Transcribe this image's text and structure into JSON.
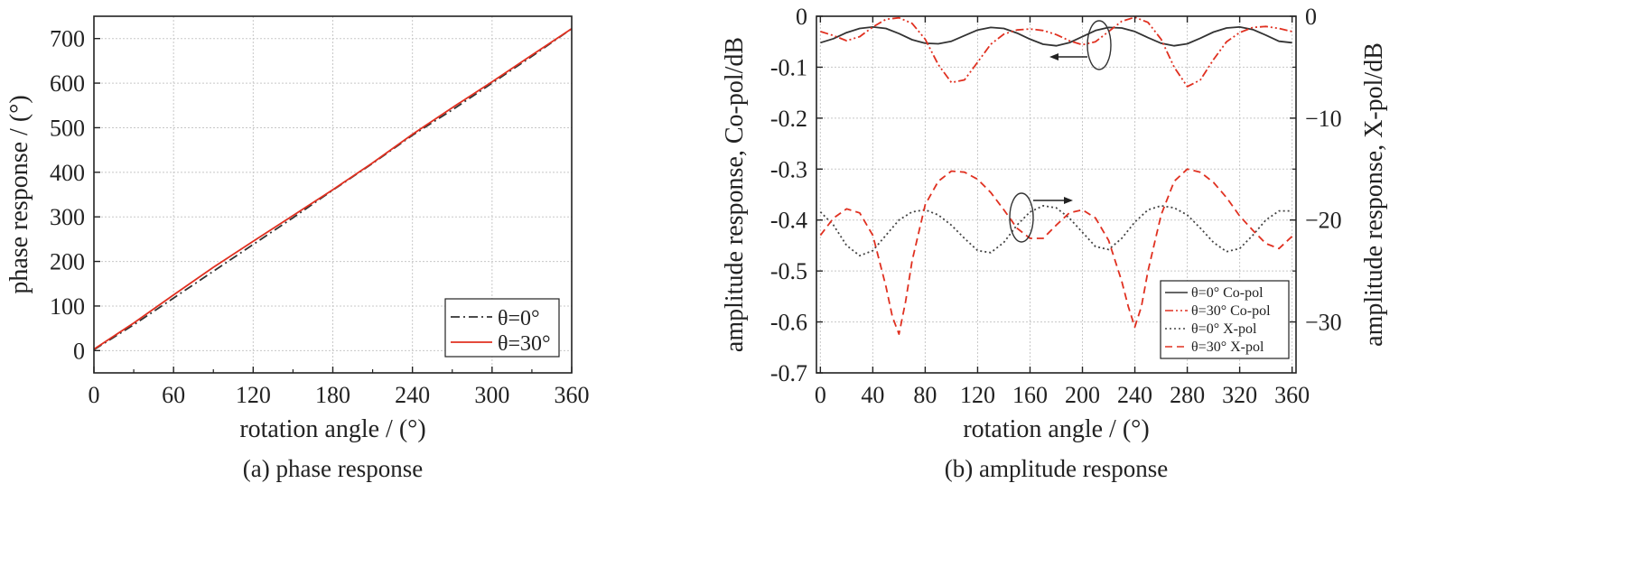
{
  "chart_data": [
    {
      "type": "line",
      "caption": "(a) phase response",
      "xlabel": "rotation angle / (°)",
      "ylabel": "phase response / (°)",
      "xlim": [
        0,
        360
      ],
      "ylim": [
        -50,
        750
      ],
      "xticks": [
        0,
        60,
        120,
        180,
        240,
        300,
        360
      ],
      "yticks": [
        0,
        100,
        200,
        300,
        400,
        500,
        600,
        700
      ],
      "grid": true,
      "legend_position": "bottom-right",
      "series": [
        {
          "name": "θ=0°",
          "color": "#333333",
          "style": "dashdot",
          "x": [
            0,
            30,
            60,
            90,
            120,
            150,
            180,
            210,
            240,
            270,
            300,
            330,
            360
          ],
          "y": [
            2,
            58,
            118,
            178,
            238,
            298,
            360,
            420,
            483,
            540,
            600,
            660,
            722
          ]
        },
        {
          "name": "θ=30°",
          "color": "#e03020",
          "style": "solid",
          "x": [
            0,
            30,
            60,
            90,
            120,
            150,
            180,
            210,
            240,
            270,
            300,
            330,
            360
          ],
          "y": [
            3,
            62,
            125,
            187,
            245,
            303,
            361,
            421,
            485,
            545,
            603,
            663,
            722
          ]
        }
      ]
    },
    {
      "type": "line",
      "caption": "(b) amplitude response",
      "xlabel": "rotation angle / (°)",
      "ylabel_left": "amplitude response, Co-pol/dB",
      "ylabel_right": "amplitude response, X-pol/dB",
      "xlim": [
        -3,
        363
      ],
      "xticks": [
        0,
        40,
        80,
        120,
        160,
        200,
        240,
        280,
        320,
        360
      ],
      "ylim_left": [
        -0.7,
        0
      ],
      "yticks_left": [
        0,
        -0.1,
        -0.2,
        -0.3,
        -0.4,
        -0.5,
        -0.6,
        -0.7
      ],
      "ylim_right": [
        -35,
        0
      ],
      "yticks_right": [
        0,
        -10,
        -20,
        -30
      ],
      "grid": true,
      "legend_position": "bottom-right",
      "series": [
        {
          "name": "θ=0° Co-pol",
          "axis": "left",
          "color": "#333333",
          "style": "solid",
          "x": [
            0,
            10,
            20,
            30,
            40,
            50,
            60,
            70,
            80,
            90,
            100,
            110,
            120,
            130,
            140,
            150,
            160,
            170,
            180,
            190,
            200,
            210,
            220,
            230,
            240,
            250,
            260,
            270,
            280,
            290,
            300,
            310,
            320,
            330,
            340,
            350,
            360
          ],
          "y": [
            -0.052,
            -0.044,
            -0.032,
            -0.024,
            -0.021,
            -0.024,
            -0.034,
            -0.046,
            -0.053,
            -0.054,
            -0.049,
            -0.038,
            -0.027,
            -0.022,
            -0.024,
            -0.033,
            -0.045,
            -0.055,
            -0.058,
            -0.052,
            -0.04,
            -0.028,
            -0.022,
            -0.023,
            -0.03,
            -0.042,
            -0.053,
            -0.058,
            -0.054,
            -0.043,
            -0.031,
            -0.023,
            -0.021,
            -0.026,
            -0.037,
            -0.049,
            -0.052
          ]
        },
        {
          "name": "θ=30° Co-pol",
          "axis": "left",
          "color": "#e03020",
          "style": "dashdotdot",
          "x": [
            0,
            10,
            20,
            30,
            40,
            50,
            60,
            70,
            80,
            90,
            100,
            110,
            120,
            130,
            140,
            150,
            160,
            170,
            180,
            190,
            200,
            210,
            220,
            230,
            240,
            250,
            260,
            270,
            280,
            290,
            300,
            310,
            320,
            330,
            340,
            350,
            360
          ],
          "y": [
            -0.03,
            -0.038,
            -0.048,
            -0.04,
            -0.021,
            -0.006,
            -0.003,
            -0.014,
            -0.045,
            -0.095,
            -0.13,
            -0.125,
            -0.09,
            -0.055,
            -0.035,
            -0.027,
            -0.025,
            -0.028,
            -0.036,
            -0.048,
            -0.056,
            -0.05,
            -0.03,
            -0.01,
            -0.002,
            -0.012,
            -0.045,
            -0.1,
            -0.138,
            -0.125,
            -0.085,
            -0.05,
            -0.032,
            -0.022,
            -0.02,
            -0.024,
            -0.03
          ]
        },
        {
          "name": "θ=0° X-pol",
          "axis": "right",
          "color": "#444444",
          "style": "dotted",
          "x": [
            0,
            10,
            20,
            30,
            40,
            50,
            60,
            70,
            80,
            90,
            100,
            110,
            120,
            130,
            140,
            150,
            160,
            170,
            180,
            190,
            200,
            210,
            220,
            230,
            240,
            250,
            260,
            270,
            280,
            290,
            300,
            310,
            320,
            330,
            340,
            350,
            360
          ],
          "y": [
            -19.2,
            -20.5,
            -22.5,
            -23.5,
            -23.0,
            -21.5,
            -20.0,
            -19.2,
            -19.0,
            -19.5,
            -20.5,
            -21.8,
            -23.0,
            -23.2,
            -22.2,
            -20.5,
            -19.2,
            -18.6,
            -18.8,
            -19.8,
            -21.2,
            -22.6,
            -22.9,
            -21.8,
            -20.2,
            -19.0,
            -18.6,
            -18.8,
            -19.5,
            -20.8,
            -22.2,
            -23.1,
            -22.8,
            -21.5,
            -20.0,
            -19.1,
            -19.1
          ]
        },
        {
          "name": "θ=30° X-pol",
          "axis": "right",
          "color": "#e03020",
          "style": "dashed",
          "x": [
            0,
            10,
            20,
            30,
            40,
            50,
            55,
            60,
            65,
            70,
            80,
            90,
            100,
            110,
            120,
            130,
            140,
            150,
            160,
            170,
            180,
            190,
            200,
            210,
            220,
            230,
            235,
            240,
            245,
            250,
            260,
            270,
            280,
            290,
            300,
            310,
            320,
            330,
            340,
            350,
            360
          ],
          "y": [
            -21.5,
            -19.8,
            -18.9,
            -19.3,
            -21.5,
            -26.5,
            -29.5,
            -31.2,
            -28.0,
            -24.0,
            -18.5,
            -16.2,
            -15.2,
            -15.3,
            -16.0,
            -17.3,
            -19.0,
            -20.8,
            -21.8,
            -21.8,
            -20.5,
            -19.3,
            -19.0,
            -19.8,
            -22.0,
            -26.0,
            -28.5,
            -30.5,
            -28.5,
            -25.0,
            -19.5,
            -16.2,
            -15.0,
            -15.3,
            -16.3,
            -17.8,
            -19.6,
            -21.0,
            -22.3,
            -22.8,
            -21.6
          ]
        }
      ],
      "annotations": {
        "left_arrow_group": "Co-pol → left axis",
        "right_arrow_group": "X-pol → right axis"
      }
    }
  ]
}
